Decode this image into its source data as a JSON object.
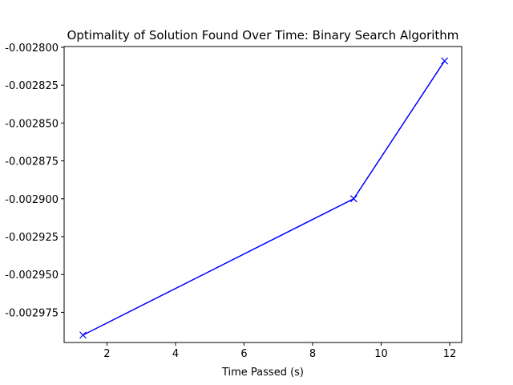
{
  "chart_data": {
    "type": "line",
    "title": "Optimality of Solution Found Over Time: Binary Search Algorithm",
    "xlabel": "Time Passed (s)",
    "ylabel": "",
    "xlim": [
      0.75,
      12.35
    ],
    "ylim": [
      -0.0029949,
      -0.0027995
    ],
    "x_ticks": [
      2,
      4,
      6,
      8,
      10,
      12
    ],
    "x_tick_labels": [
      "2",
      "4",
      "6",
      "8",
      "10",
      "12"
    ],
    "y_ticks": [
      -0.0028,
      -0.002825,
      -0.00285,
      -0.002875,
      -0.0029,
      -0.002925,
      -0.00295,
      -0.002975
    ],
    "y_tick_labels": [
      "-0.002800",
      "-0.002825",
      "-0.002850",
      "-0.002875",
      "-0.002900",
      "-0.002925",
      "-0.002950",
      "-0.002975"
    ],
    "grid": false,
    "series": [
      {
        "color": "#0000ff",
        "marker": "x",
        "x": [
          1.3,
          9.2,
          11.85
        ],
        "y": [
          -0.00299,
          -0.0029,
          -0.002809
        ]
      }
    ]
  }
}
